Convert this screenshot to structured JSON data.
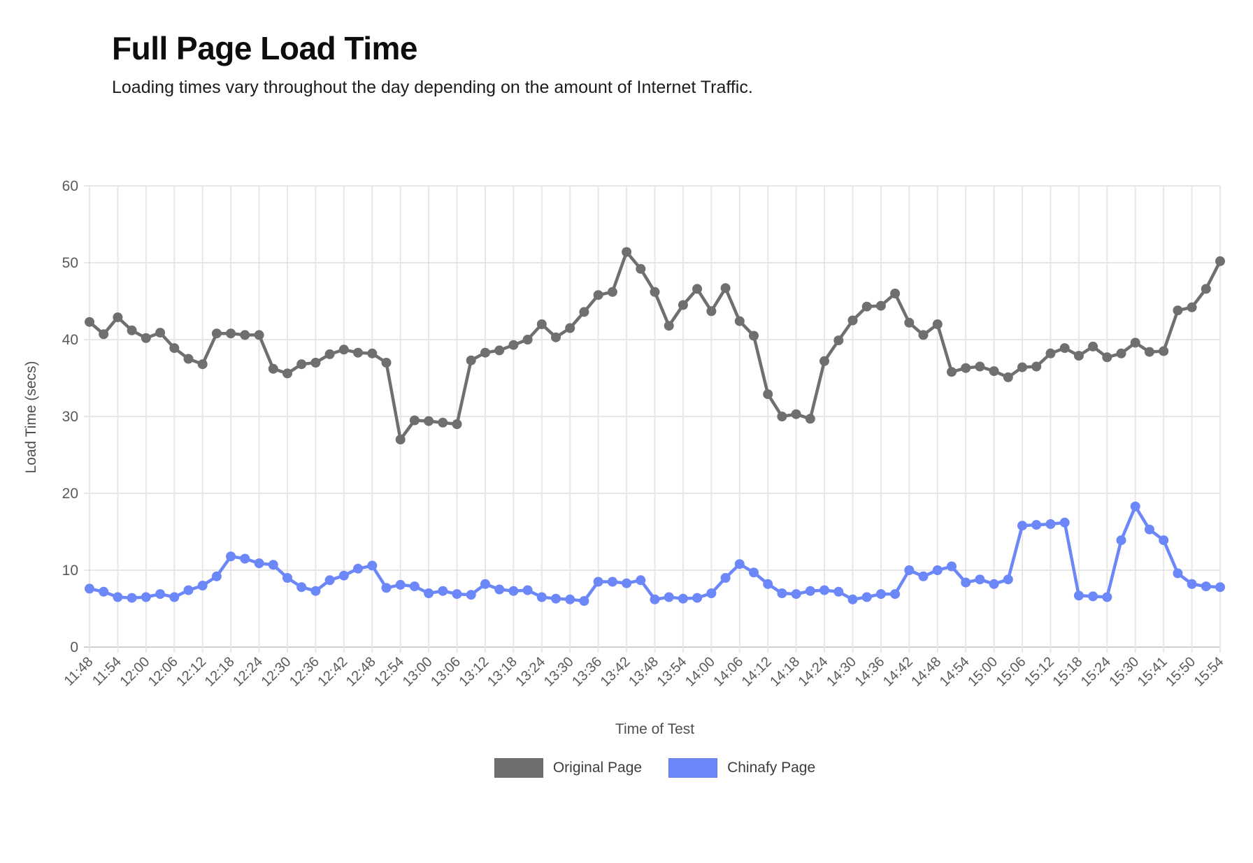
{
  "page": {
    "title": "Full Page Load Time",
    "subtitle": "Loading times vary throughout the day depending on the amount of Internet Traffic."
  },
  "chart_data": {
    "type": "line",
    "title": "Full Page Load Time",
    "xlabel": "Time of Test",
    "ylabel": "Load Time (secs)",
    "ylim": [
      0,
      60
    ],
    "yticks": [
      0,
      10,
      20,
      30,
      40,
      50,
      60
    ],
    "grid": true,
    "legend_position": "bottom",
    "x_tick_labels": [
      "11:48",
      "11:54",
      "12:00",
      "12:06",
      "12:12",
      "12:18",
      "12:24",
      "12:30",
      "12:36",
      "12:42",
      "12:48",
      "12:54",
      "13:00",
      "13:06",
      "13:12",
      "13:18",
      "13:24",
      "13:30",
      "13:36",
      "13:42",
      "13:48",
      "13:54",
      "14:00",
      "14:06",
      "14:12",
      "14:18",
      "14:24",
      "14:30",
      "14:36",
      "14:42",
      "14:48",
      "14:54",
      "15:00",
      "15:06",
      "15:12",
      "15:18",
      "15:24",
      "15:30",
      "15:41",
      "15:50",
      "15:54"
    ],
    "points_per_labeled_tick": 2,
    "series": [
      {
        "name": "Original Page",
        "color": "#6f6f6f",
        "values": [
          42.3,
          40.7,
          42.9,
          41.2,
          40.2,
          40.9,
          38.9,
          37.5,
          36.8,
          40.8,
          40.8,
          40.6,
          40.6,
          36.2,
          35.6,
          36.8,
          37.0,
          38.1,
          38.7,
          38.3,
          38.2,
          37.0,
          27.0,
          29.5,
          29.4,
          29.2,
          29.0,
          37.3,
          38.3,
          38.6,
          39.3,
          40.0,
          42.0,
          40.3,
          41.5,
          43.6,
          45.8,
          46.2,
          51.4,
          49.2,
          46.2,
          41.8,
          44.5,
          46.6,
          43.7,
          46.7,
          42.4,
          40.5,
          32.9,
          30.0,
          30.3,
          29.7,
          37.2,
          39.9,
          42.5,
          44.3,
          44.4,
          46.0,
          42.2,
          40.6,
          42.0,
          35.8,
          36.3,
          36.5,
          35.9,
          35.1,
          36.4,
          36.5,
          38.2,
          38.9,
          37.9,
          39.1,
          37.7,
          38.2,
          39.6,
          38.4,
          38.5,
          43.8,
          44.2,
          46.6,
          50.2
        ]
      },
      {
        "name": "Chinafy Page",
        "color": "#6c87f8",
        "values": [
          7.6,
          7.2,
          6.5,
          6.4,
          6.5,
          6.9,
          6.5,
          7.4,
          8.0,
          9.2,
          11.8,
          11.5,
          10.9,
          10.7,
          9.0,
          7.8,
          7.3,
          8.7,
          9.3,
          10.2,
          10.6,
          7.7,
          8.1,
          7.9,
          7.0,
          7.3,
          6.9,
          6.8,
          8.2,
          7.5,
          7.3,
          7.4,
          6.5,
          6.3,
          6.2,
          6.0,
          8.5,
          8.5,
          8.3,
          8.7,
          6.2,
          6.5,
          6.3,
          6.4,
          7.0,
          9.0,
          10.8,
          9.7,
          8.2,
          7.0,
          6.9,
          7.3,
          7.4,
          7.2,
          6.2,
          6.5,
          6.9,
          6.9,
          10.0,
          9.2,
          10.0,
          10.5,
          8.4,
          8.8,
          8.2,
          8.8,
          15.8,
          15.9,
          16.0,
          16.2,
          6.7,
          6.6,
          6.5,
          13.9,
          18.3,
          15.3,
          13.9,
          9.6,
          8.2,
          7.9,
          7.8
        ]
      }
    ],
    "colors": {
      "grid": "#e7e7e7",
      "axis_line": "#cfcfcf",
      "tick_text": "#595959"
    }
  }
}
